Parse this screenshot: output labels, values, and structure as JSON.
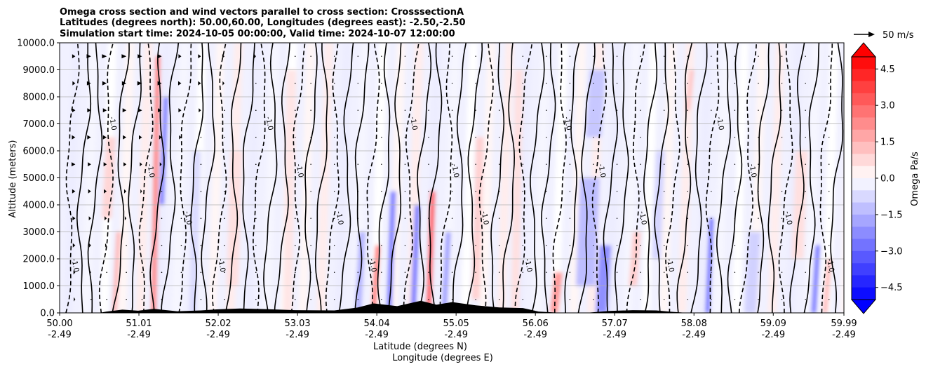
{
  "chart_data": {
    "type": "contour",
    "title_lines": [
      "Omega cross section and wind vectors parallel to cross section: CrosssectionA",
      "Latitudes (degrees north): 50.00,60.00, Longitudes (degrees east): -2.50,-2.50",
      "Simulation start time: 2024-10-05 00:00:00, Valid time: 2024-10-07 12:00:00"
    ],
    "ylabel": "Altitude (meters)",
    "xlabel_lines": [
      "Latitude (degrees N)",
      "Longitude (degrees E)"
    ],
    "ylim": [
      0,
      10000
    ],
    "y_ticks": [
      0,
      1000,
      2000,
      3000,
      4000,
      5000,
      6000,
      7000,
      8000,
      9000,
      10000
    ],
    "y_tick_labels": [
      "0.0",
      "1000.0",
      "2000.0",
      "3000.0",
      "4000.0",
      "5000.0",
      "6000.0",
      "7000.0",
      "8000.0",
      "9000.0",
      "10000.0"
    ],
    "x_ticks": [
      {
        "lat": "50.00",
        "lon": "-2.49"
      },
      {
        "lat": "51.01",
        "lon": "-2.49"
      },
      {
        "lat": "52.02",
        "lon": "-2.49"
      },
      {
        "lat": "53.03",
        "lon": "-2.49"
      },
      {
        "lat": "54.04",
        "lon": "-2.49"
      },
      {
        "lat": "55.05",
        "lon": "-2.49"
      },
      {
        "lat": "56.06",
        "lon": "-2.49"
      },
      {
        "lat": "57.07",
        "lon": "-2.49"
      },
      {
        "lat": "58.08",
        "lon": "-2.49"
      },
      {
        "lat": "59.09",
        "lon": "-2.49"
      },
      {
        "lat": "59.99",
        "lon": "-2.49"
      }
    ],
    "xlim": [
      50.0,
      59.99
    ],
    "grid": "horizontal",
    "colorbar": {
      "label": "Omega Pa/s",
      "range": [
        -5.0,
        5.0
      ],
      "ticks": [
        4.5,
        3.0,
        1.5,
        0.0,
        -1.5,
        -3.0,
        -4.5
      ],
      "tick_labels": [
        "4.5",
        "3.0",
        "1.5",
        "0.0",
        "−1.5",
        "−3.0",
        "−4.5"
      ],
      "colormap": "bwr",
      "extend": "both",
      "color_low": "#0000ff",
      "color_mid": "#ffffff",
      "color_high": "#ff0000"
    },
    "quiver_key": {
      "label": "50 m/s"
    },
    "contour_levels": [
      -1.0,
      0.0,
      1.0
    ],
    "contour_label_texts": [
      "0.0",
      "1.0",
      "-1.0"
    ],
    "terrain": {
      "lat": [
        50.5,
        50.6,
        50.8,
        51.0,
        51.2,
        51.5,
        51.8,
        52.0,
        52.3,
        52.6,
        53.0,
        53.5,
        53.8,
        54.0,
        54.3,
        54.6,
        54.8,
        55.0,
        55.3,
        55.6,
        55.9,
        56.1,
        56.4,
        56.7,
        57.0,
        57.3,
        57.6,
        57.8,
        58.0
      ],
      "height": [
        0,
        50,
        120,
        80,
        150,
        60,
        90,
        130,
        160,
        140,
        100,
        90,
        200,
        350,
        250,
        450,
        300,
        400,
        280,
        200,
        180,
        50,
        0,
        0,
        70,
        100,
        90,
        40,
        0
      ]
    },
    "omega_features": [
      {
        "lat": 51.2,
        "alt_min": 0,
        "alt_max": 9500,
        "width": 0.06,
        "value": 2.5
      },
      {
        "lat": 51.3,
        "alt_min": 4000,
        "alt_max": 8000,
        "width": 0.04,
        "value": -3.0
      },
      {
        "lat": 50.7,
        "alt_min": 0,
        "alt_max": 3000,
        "width": 0.05,
        "value": 1.5
      },
      {
        "lat": 50.6,
        "alt_min": 3500,
        "alt_max": 6500,
        "width": 0.12,
        "value": 0.8
      },
      {
        "lat": 51.7,
        "alt_min": 0,
        "alt_max": 6000,
        "width": 0.1,
        "value": -0.7
      },
      {
        "lat": 52.2,
        "alt_min": 1000,
        "alt_max": 6000,
        "width": 0.15,
        "value": 0.6
      },
      {
        "lat": 52.9,
        "alt_min": 0,
        "alt_max": 9000,
        "width": 0.12,
        "value": 0.5
      },
      {
        "lat": 53.8,
        "alt_min": 0,
        "alt_max": 3000,
        "width": 0.08,
        "value": -1.5
      },
      {
        "lat": 54.0,
        "alt_min": 0,
        "alt_max": 2500,
        "width": 0.05,
        "value": 3.5
      },
      {
        "lat": 54.2,
        "alt_min": 0,
        "alt_max": 4500,
        "width": 0.06,
        "value": -2.8
      },
      {
        "lat": 54.5,
        "alt_min": 0,
        "alt_max": 4000,
        "width": 0.05,
        "value": -3.2
      },
      {
        "lat": 54.7,
        "alt_min": 0,
        "alt_max": 4500,
        "width": 0.06,
        "value": 3.8
      },
      {
        "lat": 54.9,
        "alt_min": 0,
        "alt_max": 3000,
        "width": 0.06,
        "value": -2.0
      },
      {
        "lat": 55.3,
        "alt_min": 500,
        "alt_max": 6500,
        "width": 0.1,
        "value": 0.9
      },
      {
        "lat": 55.8,
        "alt_min": 0,
        "alt_max": 9000,
        "width": 0.1,
        "value": 0.6
      },
      {
        "lat": 56.3,
        "alt_min": 0,
        "alt_max": 1500,
        "width": 0.1,
        "value": 2.0
      },
      {
        "lat": 56.7,
        "alt_min": 1000,
        "alt_max": 5000,
        "width": 0.25,
        "value": -1.3
      },
      {
        "lat": 56.9,
        "alt_min": 0,
        "alt_max": 2500,
        "width": 0.15,
        "value": -2.2
      },
      {
        "lat": 56.8,
        "alt_min": 6500,
        "alt_max": 9000,
        "width": 0.2,
        "value": -1.1
      },
      {
        "lat": 57.3,
        "alt_min": 1000,
        "alt_max": 3000,
        "width": 0.1,
        "value": 1.0
      },
      {
        "lat": 57.6,
        "alt_min": 2000,
        "alt_max": 6000,
        "width": 0.12,
        "value": -0.8
      },
      {
        "lat": 58.0,
        "alt_min": 7500,
        "alt_max": 9000,
        "width": 0.05,
        "value": 1.2
      },
      {
        "lat": 58.25,
        "alt_min": 0,
        "alt_max": 3500,
        "width": 0.05,
        "value": -2.8
      },
      {
        "lat": 58.8,
        "alt_min": 0,
        "alt_max": 3000,
        "width": 0.15,
        "value": -0.9
      },
      {
        "lat": 59.6,
        "alt_min": 0,
        "alt_max": 2500,
        "width": 0.04,
        "value": -3.0
      },
      {
        "lat": 59.4,
        "alt_min": 2000,
        "alt_max": 6000,
        "width": 0.15,
        "value": 0.6
      },
      {
        "lat": 59.75,
        "alt_min": 0,
        "alt_max": 2000,
        "width": 0.05,
        "value": 1.5
      }
    ],
    "wind_columns": [
      {
        "lat": 50.0,
        "u": [
          8,
          7,
          8,
          8,
          10,
          12,
          10,
          9,
          8,
          10
        ]
      },
      {
        "lat": 50.2,
        "u": [
          5,
          6,
          8,
          9,
          10,
          12,
          11,
          10,
          9,
          10
        ]
      },
      {
        "lat": 50.4,
        "u": [
          0,
          4,
          6,
          7,
          9,
          10,
          12,
          12,
          13,
          14
        ]
      },
      {
        "lat": 50.6,
        "u": [
          0,
          0,
          5,
          7,
          9,
          10,
          12,
          12,
          14,
          15
        ]
      },
      {
        "lat": 50.85,
        "u": [
          0,
          0,
          0,
          5,
          7,
          9,
          11,
          12,
          14,
          15
        ]
      },
      {
        "lat": 51.05,
        "u": [
          0,
          0,
          0,
          0,
          5,
          7,
          10,
          13,
          15,
          14
        ]
      },
      {
        "lat": 51.3,
        "u": [
          0,
          0,
          0,
          0,
          0,
          6,
          8,
          12,
          13,
          12
        ]
      },
      {
        "lat": 51.55,
        "u": [
          0,
          0,
          0,
          0,
          0,
          0,
          7,
          9,
          10,
          9
        ]
      },
      {
        "lat": 51.8,
        "u": [
          0,
          0,
          0,
          0,
          0,
          0,
          0,
          7,
          9,
          9
        ]
      },
      {
        "lat": 52.1,
        "u": [
          0,
          0,
          0,
          0,
          0,
          0,
          0,
          0,
          6,
          7
        ]
      },
      {
        "lat": 52.5,
        "u": [
          0,
          0,
          0,
          0,
          0,
          0,
          0,
          0,
          0,
          5
        ]
      },
      {
        "lat": 53.0,
        "u": [
          0,
          0,
          0,
          0,
          0,
          0,
          0,
          0,
          0,
          0
        ]
      }
    ]
  }
}
